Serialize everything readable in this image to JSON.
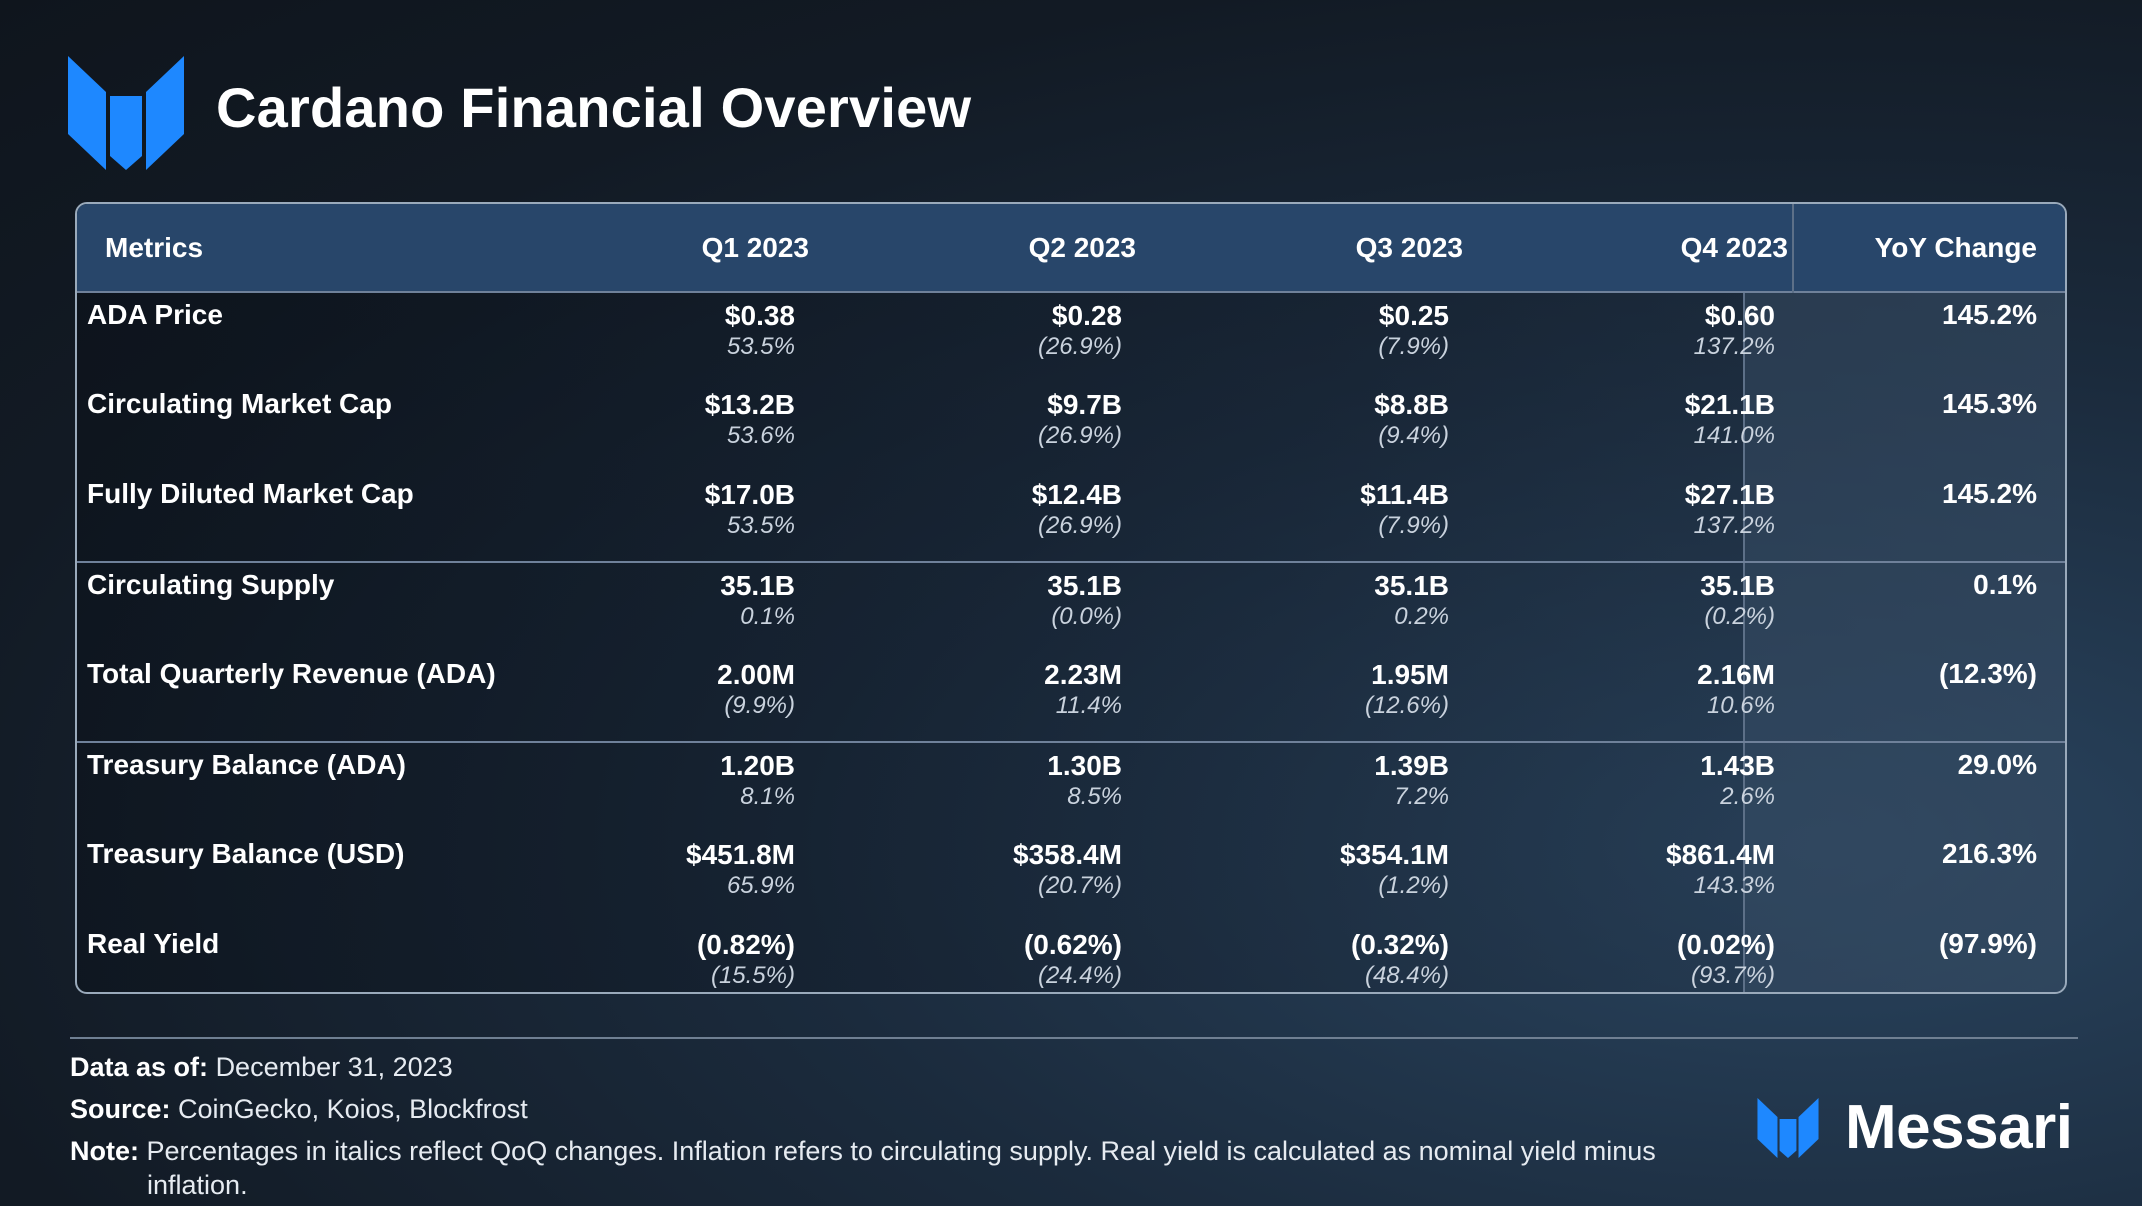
{
  "title": "Cardano Financial Overview",
  "colors": {
    "accent": "#1e88ff",
    "header_bg": "#28466a"
  },
  "table": {
    "headers": [
      "Metrics",
      "Q1 2023",
      "Q2 2023",
      "Q3 2023",
      "Q4 2023",
      "YoY Change"
    ],
    "rows": [
      {
        "metric": "ADA Price",
        "q": [
          {
            "v": "$0.38",
            "c": "53.5%"
          },
          {
            "v": "$0.28",
            "c": "(26.9%)"
          },
          {
            "v": "$0.25",
            "c": "(7.9%)"
          },
          {
            "v": "$0.60",
            "c": "137.2%"
          }
        ],
        "yoy": "145.2%"
      },
      {
        "metric": "Circulating Market Cap",
        "q": [
          {
            "v": "$13.2B",
            "c": "53.6%"
          },
          {
            "v": "$9.7B",
            "c": "(26.9%)"
          },
          {
            "v": "$8.8B",
            "c": "(9.4%)"
          },
          {
            "v": "$21.1B",
            "c": "141.0%"
          }
        ],
        "yoy": "145.3%"
      },
      {
        "metric": "Fully Diluted Market Cap",
        "q": [
          {
            "v": "$17.0B",
            "c": "53.5%"
          },
          {
            "v": "$12.4B",
            "c": "(26.9%)"
          },
          {
            "v": "$11.4B",
            "c": "(7.9%)"
          },
          {
            "v": "$27.1B",
            "c": "137.2%"
          }
        ],
        "yoy": "145.2%"
      },
      {
        "metric": "Circulating Supply",
        "q": [
          {
            "v": "35.1B",
            "c": "0.1%"
          },
          {
            "v": "35.1B",
            "c": "(0.0%)"
          },
          {
            "v": "35.1B",
            "c": "0.2%"
          },
          {
            "v": "35.1B",
            "c": "(0.2%)"
          }
        ],
        "yoy": "0.1%"
      },
      {
        "metric": "Total Quarterly Revenue (ADA)",
        "q": [
          {
            "v": "2.00M",
            "c": "(9.9%)"
          },
          {
            "v": "2.23M",
            "c": "11.4%"
          },
          {
            "v": "1.95M",
            "c": "(12.6%)"
          },
          {
            "v": "2.16M",
            "c": "10.6%"
          }
        ],
        "yoy": "(12.3%)"
      },
      {
        "metric": "Treasury Balance (ADA)",
        "q": [
          {
            "v": "1.20B",
            "c": "8.1%"
          },
          {
            "v": "1.30B",
            "c": "8.5%"
          },
          {
            "v": "1.39B",
            "c": "7.2%"
          },
          {
            "v": "1.43B",
            "c": "2.6%"
          }
        ],
        "yoy": "29.0%"
      },
      {
        "metric": "Treasury Balance (USD)",
        "q": [
          {
            "v": "$451.8M",
            "c": "65.9%"
          },
          {
            "v": "$358.4M",
            "c": "(20.7%)"
          },
          {
            "v": "$354.1M",
            "c": "(1.2%)"
          },
          {
            "v": "$861.4M",
            "c": "143.3%"
          }
        ],
        "yoy": "216.3%"
      },
      {
        "metric": "Real Yield",
        "q": [
          {
            "v": "(0.82%)",
            "c": "(15.5%)"
          },
          {
            "v": "(0.62%)",
            "c": "(24.4%)"
          },
          {
            "v": "(0.32%)",
            "c": "(48.4%)"
          },
          {
            "v": "(0.02%)",
            "c": "(93.7%)"
          }
        ],
        "yoy": "(97.9%)"
      }
    ]
  },
  "footer": {
    "data_as_of_label": "Data as of:",
    "data_as_of": "December 31, 2023",
    "source_label": "Source:",
    "source": "CoinGecko, Koios, Blockfrost",
    "note_label": "Note:",
    "note_line1": "Percentages in italics reflect QoQ changes. Inflation refers to circulating supply. Real yield is calculated as nominal yield minus",
    "note_line2": "inflation."
  },
  "brand": {
    "name": "Messari",
    "logo_icon": "messari-logo-icon"
  }
}
